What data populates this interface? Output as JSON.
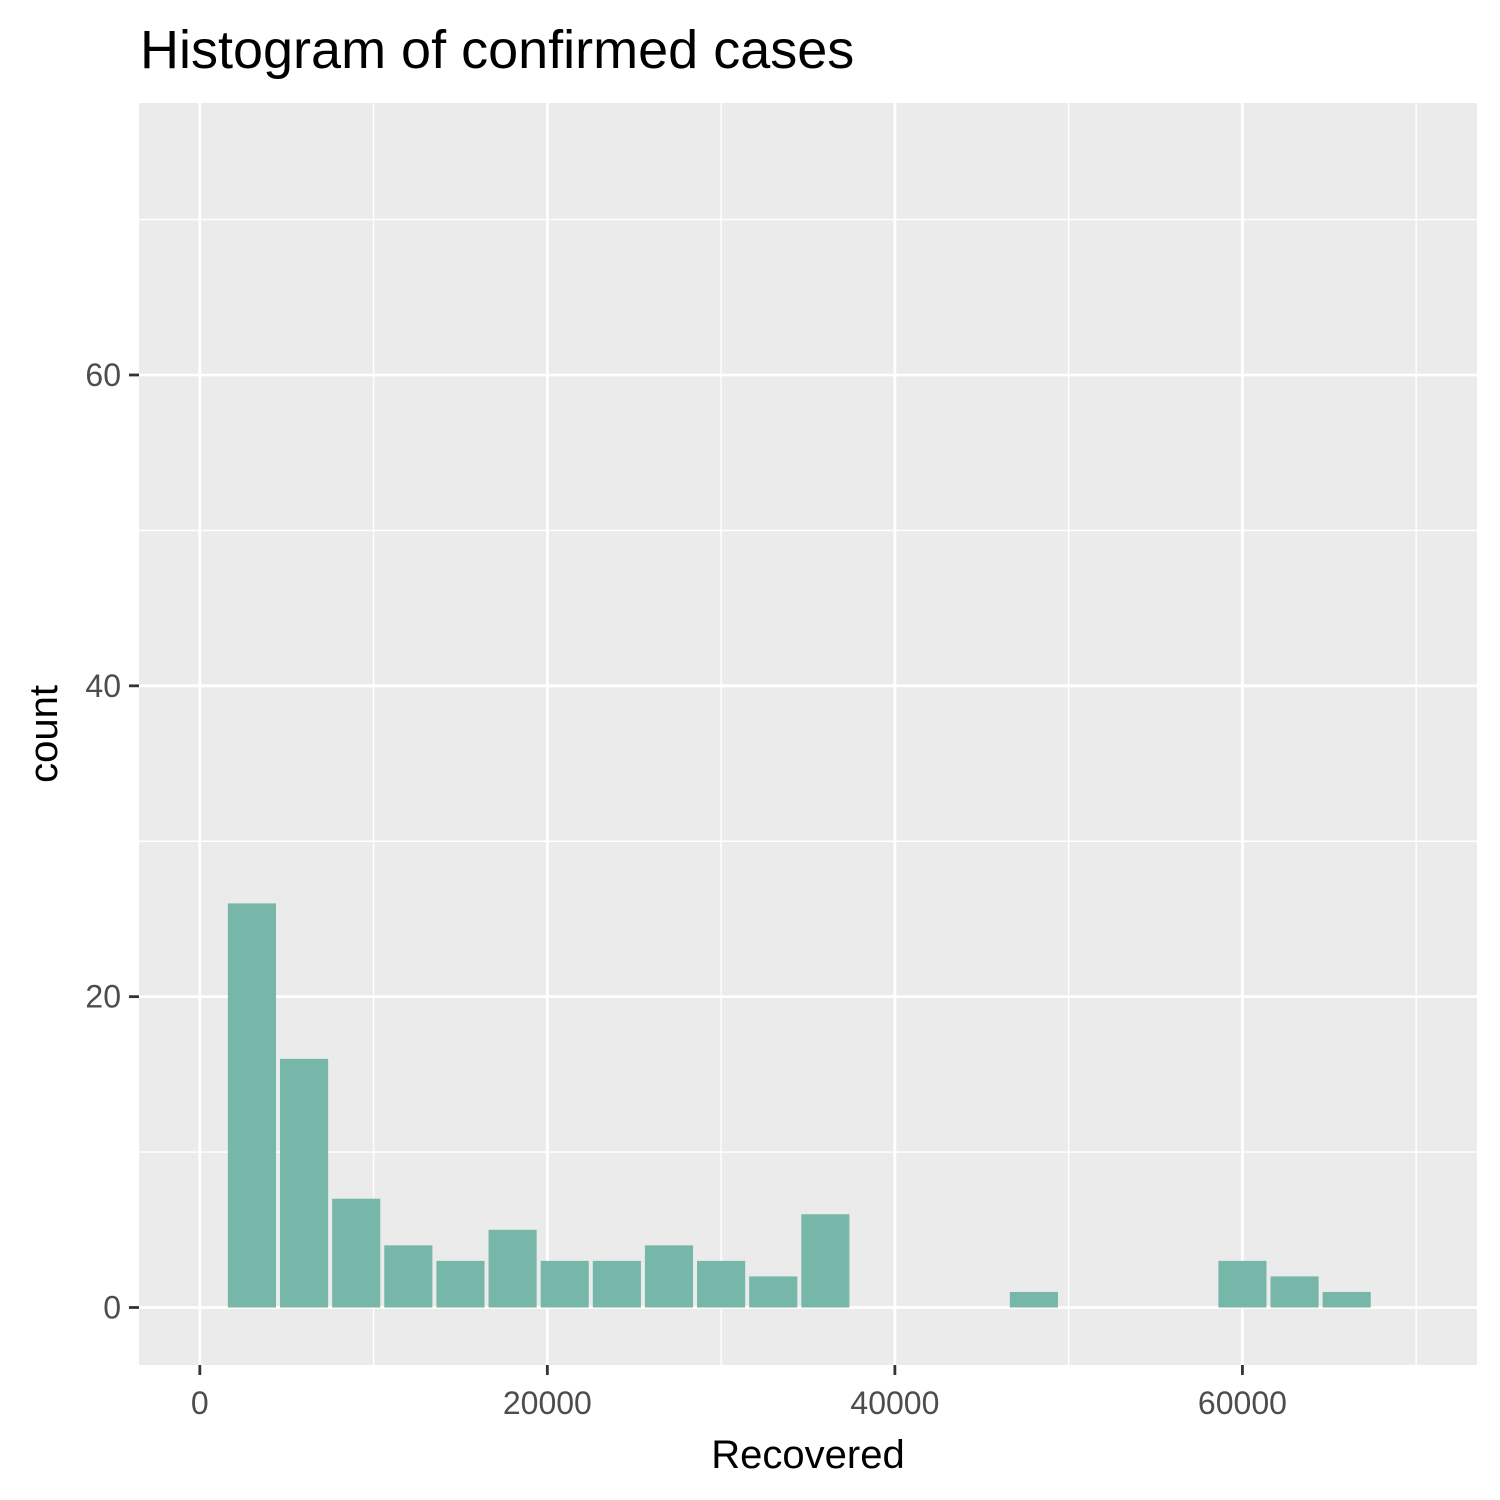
{
  "chart_data": {
    "type": "bar",
    "title": "Histogram of confirmed cases",
    "xlabel": "Recovered",
    "ylabel": "count",
    "xlim": [
      -3500,
      73500
    ],
    "ylim": [
      -3.7,
      77.5
    ],
    "x_ticks": [
      0,
      20000,
      40000,
      60000
    ],
    "x_tick_labels": [
      "0",
      "20000",
      "40000",
      "60000"
    ],
    "y_ticks": [
      0,
      20,
      40,
      60
    ],
    "y_tick_labels": [
      "0",
      "20",
      "40",
      "60"
    ],
    "x_minor_ticks": [
      10000,
      30000,
      50000,
      70000
    ],
    "y_minor_ticks": [
      10,
      30,
      50,
      70
    ],
    "bin_width": 3000,
    "bin_start": 1500,
    "values": [
      26,
      16,
      7,
      4,
      3,
      5,
      3,
      3,
      4,
      3,
      2,
      6,
      0,
      0,
      0,
      1,
      0,
      0,
      0,
      3,
      2,
      1,
      0,
      0,
      0,
      0
    ],
    "grid": true,
    "legend": "none",
    "colors": {
      "bar_fill": "#77b7aa",
      "panel_background": "#ebebeb",
      "grid_line": "#ffffff",
      "axis_tick": "#333333"
    }
  }
}
